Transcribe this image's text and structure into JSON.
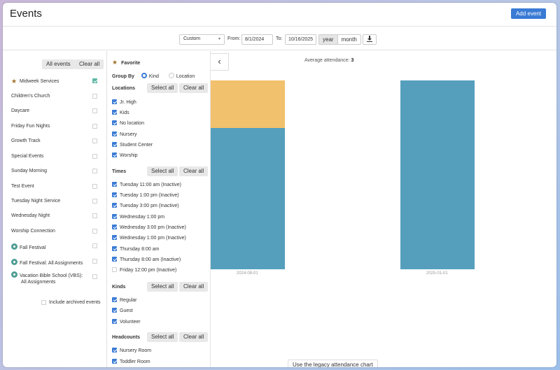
{
  "header": {
    "title": "Events",
    "add_event_label": "Add event"
  },
  "filters": {
    "range_select": "Custom",
    "from_label": "From:",
    "from_value": "8/1/2024",
    "to_label": "To:",
    "to_value": "10/16/2025",
    "view_year": "year",
    "view_month": "month",
    "download_icon": "download-icon"
  },
  "event_list": {
    "all_events_label": "All events",
    "clear_all_label": "Clear all",
    "items": [
      {
        "label": "Midweek Services",
        "icon": "star-icon",
        "checked": true
      },
      {
        "label": "Children's Church",
        "checked": false
      },
      {
        "label": "Daycare",
        "checked": false
      },
      {
        "label": "Friday Fun Nights",
        "checked": false
      },
      {
        "label": "Growth Track",
        "checked": false
      },
      {
        "label": "Special Events",
        "checked": false
      },
      {
        "label": "Sunday Morning",
        "checked": false
      },
      {
        "label": "Test Event",
        "checked": false
      },
      {
        "label": "Tuesday Night Service",
        "checked": false
      },
      {
        "label": "Wednesday Night",
        "checked": false
      },
      {
        "label": "Worship Connection",
        "checked": false
      },
      {
        "label": "Fall Festival",
        "icon": "tag-icon",
        "checked": false
      },
      {
        "label": "Fall Festival: All Assignments",
        "icon": "tag-icon",
        "checked": false
      },
      {
        "label": "Vacation Bible School (VBS):",
        "label2": "All Assignments",
        "icon": "tag-icon",
        "checked": false
      }
    ],
    "include_archived_label": "Include archived events"
  },
  "options": {
    "favorite_label": "Favorite",
    "group_by_label": "Group By",
    "group_kind": "Kind",
    "group_location": "Location",
    "select_all": "Select all",
    "clear_all": "Clear all",
    "locations_title": "Locations",
    "locations": [
      "Jr. High",
      "Kids",
      "No location",
      "Nursery",
      "Student Center",
      "Worship"
    ],
    "times_title": "Times",
    "times": [
      {
        "label": "Tuesday 11:00 am (Inactive)",
        "checked": true
      },
      {
        "label": "Tuesday 1:00 pm (Inactive)",
        "checked": true
      },
      {
        "label": "Tuesday 3:00 pm (Inactive)",
        "checked": true
      },
      {
        "label": "Wednesday 1:00 pm",
        "checked": true
      },
      {
        "label": "Wednesday 3:00 pm (Inactive)",
        "checked": true
      },
      {
        "label": "Wednesday 1:00 pm (Inactive)",
        "checked": true
      },
      {
        "label": "Thursday 8:00 am",
        "checked": true
      },
      {
        "label": "Thursday 8:00 am (Inactive)",
        "checked": true
      },
      {
        "label": "Friday 12:00 pm (Inactive)",
        "checked": false
      }
    ],
    "kinds_title": "Kinds",
    "kinds": [
      "Regular",
      "Guest",
      "Volunteer"
    ],
    "headcounts_title": "Headcounts",
    "headcounts": [
      "Nursery Room",
      "Toddler Room"
    ]
  },
  "chart": {
    "avg_label": "Average attendance:",
    "avg_value": "3",
    "legacy_label": "Use the legacy attendance chart",
    "colors": {
      "regular": "#559fbd",
      "guest": "#f2c16d"
    }
  },
  "chart_data": {
    "type": "bar",
    "categories": [
      "2024-08-01",
      "2025-01-01"
    ],
    "series": [
      {
        "values": [
          3,
          4
        ]
      },
      {
        "values": [
          1,
          0
        ]
      }
    ],
    "ylim": [
      0,
      4
    ]
  }
}
